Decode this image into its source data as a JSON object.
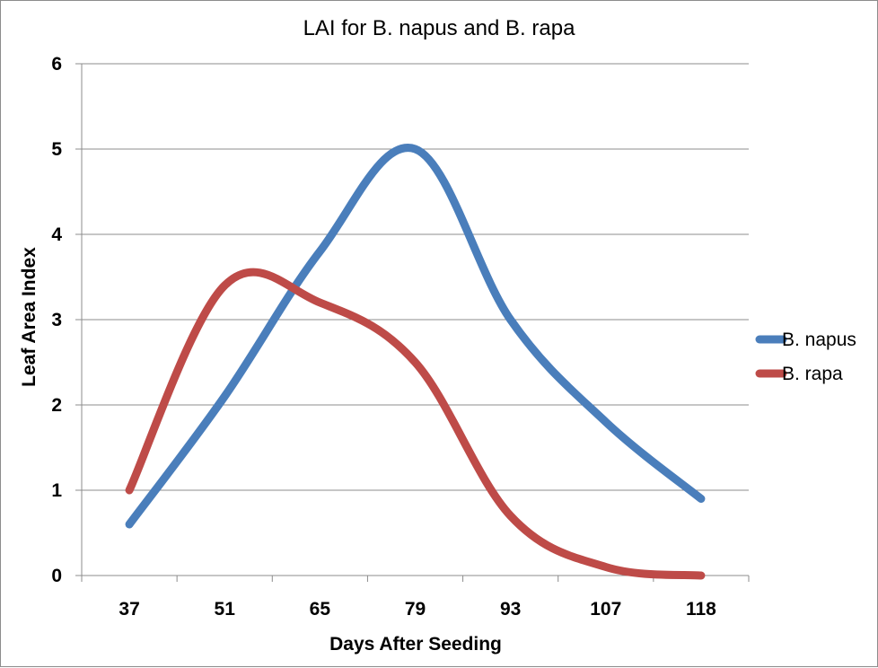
{
  "chart_data": {
    "type": "line",
    "smooth": true,
    "title": "LAI for B. napus and B. rapa",
    "xlabel": "Days After Seeding",
    "ylabel": "Leaf Area Index",
    "categories": [
      "37",
      "51",
      "65",
      "79",
      "93",
      "107",
      "118"
    ],
    "ylim": [
      0,
      6
    ],
    "yticks": [
      0,
      1,
      2,
      3,
      4,
      5,
      6
    ],
    "grid": "horizontal",
    "legend_position": "right",
    "series": [
      {
        "name": "B. napus",
        "color": "#4a7ebb",
        "values": [
          0.6,
          2.1,
          3.8,
          5.0,
          3.0,
          1.8,
          0.9
        ]
      },
      {
        "name": "B. rapa",
        "color": "#be4b48",
        "values": [
          1.0,
          3.4,
          3.2,
          2.5,
          0.7,
          0.1,
          0.0
        ]
      }
    ]
  }
}
